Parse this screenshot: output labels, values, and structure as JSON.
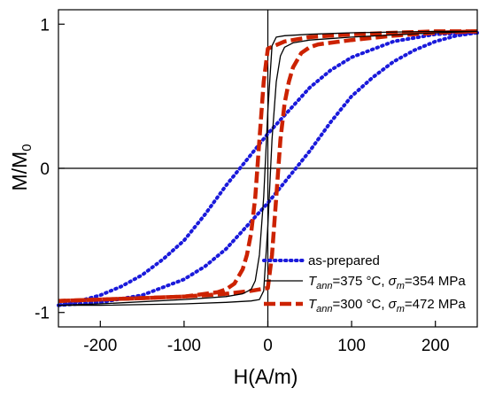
{
  "chart_data": {
    "type": "line",
    "xlabel": "H(A/m)",
    "ylabel_main": "M/M",
    "ylabel_sub": "0",
    "xlim": [
      -250,
      250
    ],
    "ylim": [
      -1.1,
      1.1
    ],
    "xticks": [
      -200,
      -100,
      0,
      100,
      200
    ],
    "xtick_labels": [
      "-200",
      "-100",
      "0",
      "100",
      "200"
    ],
    "yticks": [
      1,
      0,
      -1
    ],
    "ytick_labels": [
      "1",
      "0",
      "-1"
    ],
    "zero_lines": true,
    "legend_position": "bottom-right",
    "series": [
      {
        "name": "as-prepared",
        "color": "#1a1adb",
        "style": "dotted",
        "descending": {
          "x": [
            250,
            200,
            150,
            100,
            75,
            50,
            25,
            0,
            -25,
            -50,
            -75,
            -100,
            -125,
            -150,
            -175,
            -200,
            -225,
            -250
          ],
          "y": [
            0.94,
            0.93,
            0.88,
            0.77,
            0.68,
            0.56,
            0.4,
            0.24,
            0.06,
            -0.12,
            -0.32,
            -0.5,
            -0.63,
            -0.74,
            -0.82,
            -0.88,
            -0.92,
            -0.95
          ]
        },
        "ascending": {
          "x": [
            -250,
            -200,
            -150,
            -100,
            -75,
            -50,
            -25,
            0,
            25,
            50,
            75,
            100,
            125,
            150,
            175,
            200,
            225,
            250
          ],
          "y": [
            -0.95,
            -0.93,
            -0.88,
            -0.77,
            -0.68,
            -0.56,
            -0.4,
            -0.24,
            -0.06,
            0.12,
            0.32,
            0.5,
            0.63,
            0.74,
            0.82,
            0.88,
            0.92,
            0.94
          ]
        }
      },
      {
        "name_var": "T",
        "name_var_sub": "ann",
        "name_mid": "=375 °C, ",
        "name_sym": "σ",
        "name_sym_sub": "m",
        "name_end": "=354 MPa",
        "color": "#000000",
        "style": "solid",
        "descending": {
          "x": [
            250,
            200,
            100,
            50,
            20,
            10,
            5,
            0,
            -5,
            -10,
            -15,
            -20,
            -30,
            -50,
            -100,
            -200,
            -250
          ],
          "y": [
            0.95,
            0.95,
            0.94,
            0.93,
            0.92,
            0.91,
            0.85,
            0.4,
            -0.2,
            -0.6,
            -0.78,
            -0.84,
            -0.87,
            -0.89,
            -0.91,
            -0.94,
            -0.95
          ]
        },
        "ascending": {
          "x": [
            -250,
            -200,
            -100,
            -50,
            -20,
            -10,
            -5,
            0,
            5,
            10,
            15,
            20,
            30,
            50,
            100,
            200,
            250
          ],
          "y": [
            -0.95,
            -0.95,
            -0.94,
            -0.93,
            -0.92,
            -0.91,
            -0.85,
            -0.4,
            0.2,
            0.6,
            0.78,
            0.84,
            0.87,
            0.89,
            0.91,
            0.94,
            0.95
          ]
        }
      },
      {
        "name_var": "T",
        "name_var_sub": "ann",
        "name_mid": "=300 °C, ",
        "name_sym": "σ",
        "name_sym_sub": "m",
        "name_end": "=472 MPa",
        "color": "#cc2200",
        "style": "dashed",
        "descending": {
          "x": [
            250,
            200,
            150,
            100,
            50,
            20,
            0,
            -5,
            -10,
            -15,
            -20,
            -25,
            -30,
            -40,
            -50,
            -60,
            -100,
            -150,
            -200,
            -250
          ],
          "y": [
            0.95,
            0.95,
            0.94,
            0.93,
            0.91,
            0.88,
            0.83,
            0.6,
            0.2,
            -0.2,
            -0.45,
            -0.6,
            -0.7,
            -0.8,
            -0.84,
            -0.86,
            -0.89,
            -0.9,
            -0.91,
            -0.92
          ]
        },
        "ascending": {
          "x": [
            -250,
            -200,
            -150,
            -100,
            -50,
            -20,
            0,
            5,
            10,
            15,
            20,
            25,
            30,
            40,
            50,
            60,
            100,
            150,
            200,
            250
          ],
          "y": [
            -0.92,
            -0.91,
            -0.9,
            -0.89,
            -0.87,
            -0.85,
            -0.83,
            -0.6,
            -0.2,
            0.2,
            0.45,
            0.6,
            0.7,
            0.8,
            0.84,
            0.86,
            0.89,
            0.92,
            0.94,
            0.95
          ]
        }
      }
    ]
  }
}
